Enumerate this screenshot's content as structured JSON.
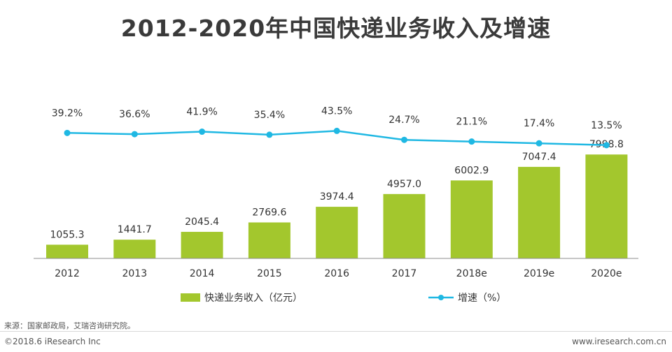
{
  "title": "2012-2020年中国快递业务收入及增速",
  "chart_data": {
    "type": "bar",
    "categories": [
      "2012",
      "2013",
      "2014",
      "2015",
      "2016",
      "2017",
      "2018e",
      "2019e",
      "2020e"
    ],
    "series": [
      {
        "name": "快递业务收入（亿元）",
        "type": "bar",
        "color": "#a3c72d",
        "values": [
          1055.3,
          1441.7,
          2045.4,
          2769.6,
          3974.4,
          4957.0,
          6002.9,
          7047.4,
          7998.8
        ],
        "labels": [
          "1055.3",
          "1441.7",
          "2045.4",
          "2769.6",
          "3974.4",
          "4957.0",
          "6002.9",
          "7047.4",
          "7998.8"
        ]
      },
      {
        "name": "增速（%）",
        "type": "line",
        "color": "#1fb8e3",
        "values": [
          39.2,
          36.6,
          41.9,
          35.4,
          43.5,
          24.7,
          21.1,
          17.4,
          13.5
        ],
        "labels": [
          "39.2%",
          "36.6%",
          "41.9%",
          "35.4%",
          "43.5%",
          "24.7%",
          "21.1%",
          "17.4%",
          "13.5%"
        ]
      }
    ],
    "legend_position": "bottom",
    "grid": false
  },
  "footer": {
    "source": "来源：国家邮政局，艾瑞咨询研究院。",
    "copyright": "©2018.6 iResearch Inc",
    "website": "www.iresearch.com.cn"
  }
}
